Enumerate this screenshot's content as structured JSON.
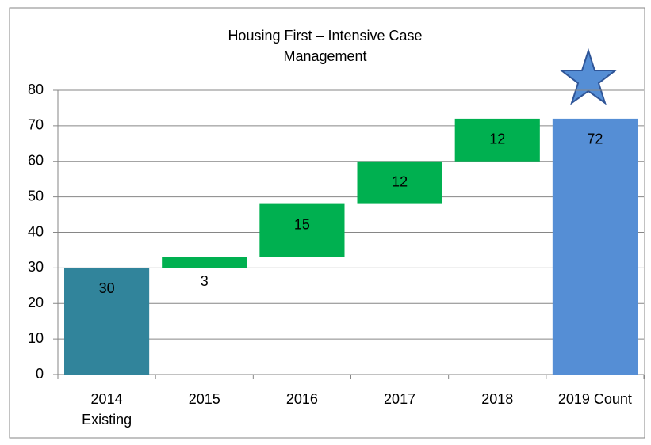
{
  "chart_data": {
    "type": "waterfall",
    "title": "Housing First – Intensive Case\nManagement",
    "categories": [
      "2014\nExisting",
      "2015",
      "2016",
      "2017",
      "2018",
      "2019 Count"
    ],
    "values": [
      30,
      3,
      15,
      12,
      12,
      72
    ],
    "colors": [
      "#31849b",
      "#00b050",
      "#00b050",
      "#00b050",
      "#00b050",
      "#558ed5"
    ],
    "ylim": [
      0,
      80
    ],
    "yticks": [
      0,
      10,
      20,
      30,
      40,
      50,
      60,
      70,
      80
    ],
    "grid": true
  }
}
